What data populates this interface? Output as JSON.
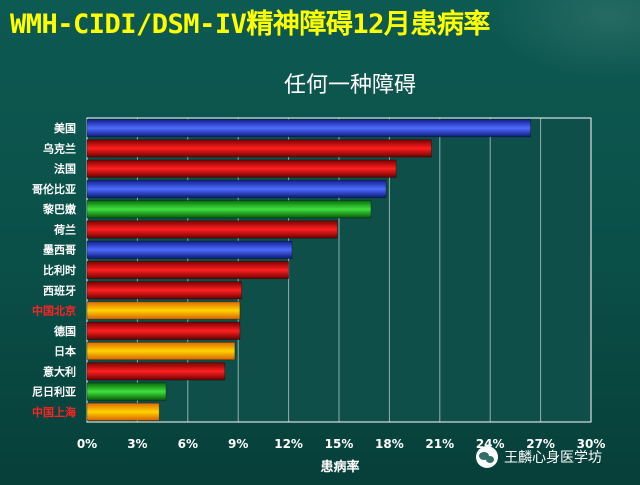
{
  "page": {
    "main_title": "WMH-CIDI/DSM-IV精神障碍12月患病率",
    "watermark": "王麟心身医学坊"
  },
  "colors": {
    "background": "#0b524b",
    "title": "#ffff00",
    "label_default": "#ffffff",
    "label_highlight": "#ff2222",
    "blue": "#2a3fd0",
    "red": "#d01010",
    "green": "#1fa81f",
    "orange": "#ff9a00"
  },
  "chart_data": {
    "type": "bar",
    "orientation": "horizontal",
    "title": "任何一种障碍",
    "xlabel": "患病率",
    "ylabel": "",
    "xlim": [
      0,
      30
    ],
    "x_ticks": [
      "0%",
      "3%",
      "6%",
      "9%",
      "12%",
      "15%",
      "18%",
      "21%",
      "24%",
      "27%",
      "30%"
    ],
    "grid": true,
    "categories": [
      "美国",
      "乌克兰",
      "法国",
      "哥伦比亚",
      "黎巴嫩",
      "荷兰",
      "墨西哥",
      "比利时",
      "西班牙",
      "中国北京",
      "德国",
      "日本",
      "意大利",
      "尼日利亚",
      "中国上海"
    ],
    "values": [
      26.4,
      20.5,
      18.4,
      17.8,
      16.9,
      14.9,
      12.2,
      12.0,
      9.2,
      9.1,
      9.1,
      8.8,
      8.2,
      4.7,
      4.3
    ],
    "bar_colors": [
      "blue",
      "red",
      "red",
      "blue",
      "green",
      "red",
      "blue",
      "red",
      "red",
      "orange",
      "red",
      "orange",
      "red",
      "green",
      "orange"
    ],
    "label_highlight": [
      false,
      false,
      false,
      false,
      false,
      false,
      false,
      false,
      false,
      true,
      false,
      false,
      false,
      false,
      true
    ]
  }
}
